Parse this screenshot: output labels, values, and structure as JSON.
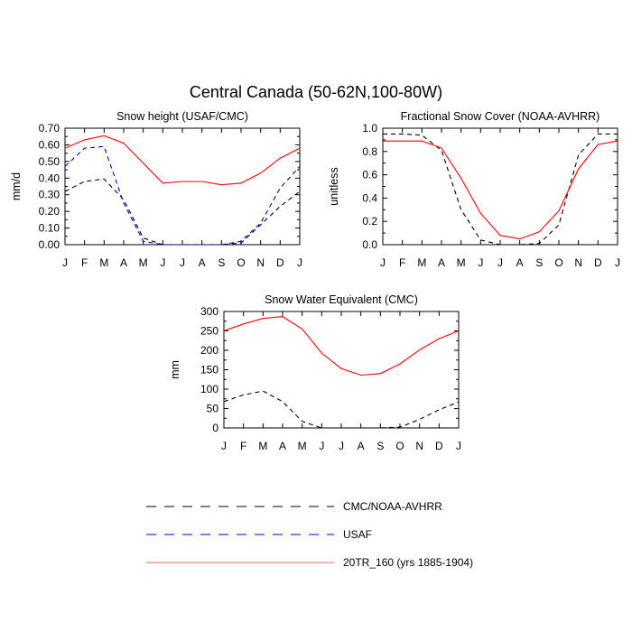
{
  "title": "Central Canada (50-62N,100-80W)",
  "months": [
    "J",
    "F",
    "M",
    "A",
    "M",
    "J",
    "J",
    "A",
    "S",
    "O",
    "N",
    "D",
    "J"
  ],
  "legend": [
    {
      "label": "CMC/NOAA-AVHRR",
      "color": "#000000",
      "dash": "dashed"
    },
    {
      "label": "USAF",
      "color": "#0000cc",
      "dash": "dashed"
    },
    {
      "label": "20TR_160 (yrs 1885-1904)",
      "color": "#ff0000",
      "dash": "solid"
    }
  ],
  "chart_data": [
    {
      "type": "line",
      "title": "Snow height (USAF/CMC)",
      "xlabel": "",
      "ylabel": "mm/d",
      "ylim": [
        0,
        0.7
      ],
      "yticks": [
        "0.00",
        "0.10",
        "0.20",
        "0.30",
        "0.40",
        "0.50",
        "0.60",
        "0.70"
      ],
      "categories": [
        "J",
        "F",
        "M",
        "A",
        "M",
        "J",
        "J",
        "A",
        "S",
        "O",
        "N",
        "D",
        "J"
      ],
      "series": [
        {
          "name": "CMC/NOAA-AVHRR",
          "color": "#000000",
          "dash": "dashed",
          "values": [
            0.32,
            0.38,
            0.395,
            0.27,
            0.04,
            0.0,
            0.0,
            0.0,
            0.0,
            0.01,
            0.12,
            0.23,
            0.32
          ]
        },
        {
          "name": "USAF",
          "color": "#0000cc",
          "dash": "dashed",
          "values": [
            0.47,
            0.58,
            0.59,
            0.25,
            0.02,
            0.0,
            0.0,
            0.0,
            0.0,
            0.02,
            0.13,
            0.34,
            0.47
          ]
        },
        {
          "name": "20TR_160 (yrs 1885-1904)",
          "color": "#ff0000",
          "dash": "solid",
          "values": [
            0.58,
            0.63,
            0.655,
            0.61,
            0.49,
            0.37,
            0.38,
            0.38,
            0.36,
            0.37,
            0.43,
            0.52,
            0.58
          ]
        }
      ]
    },
    {
      "type": "line",
      "title": "Fractional Snow Cover (NOAA-AVHRR)",
      "xlabel": "",
      "ylabel": "unitless",
      "ylim": [
        0,
        1.0
      ],
      "yticks": [
        "0.0",
        "0.2",
        "0.4",
        "0.6",
        "0.8",
        "1.0"
      ],
      "categories": [
        "J",
        "F",
        "M",
        "A",
        "M",
        "J",
        "J",
        "A",
        "S",
        "O",
        "N",
        "D",
        "J"
      ],
      "series": [
        {
          "name": "CMC/NOAA-AVHRR",
          "color": "#000000",
          "dash": "dashed",
          "values": [
            0.95,
            0.95,
            0.94,
            0.81,
            0.3,
            0.04,
            0.0,
            0.0,
            0.01,
            0.17,
            0.77,
            0.95,
            0.95
          ]
        },
        {
          "name": "20TR_160 (yrs 1885-1904)",
          "color": "#ff0000",
          "dash": "solid",
          "values": [
            0.89,
            0.89,
            0.89,
            0.83,
            0.57,
            0.27,
            0.08,
            0.05,
            0.11,
            0.29,
            0.65,
            0.86,
            0.89
          ]
        }
      ]
    },
    {
      "type": "line",
      "title": "Snow Water Equivalent (CMC)",
      "xlabel": "",
      "ylabel": "mm",
      "ylim": [
        0,
        300
      ],
      "yticks": [
        "0",
        "50",
        "100",
        "150",
        "200",
        "250",
        "300"
      ],
      "categories": [
        "J",
        "F",
        "M",
        "A",
        "M",
        "J",
        "J",
        "A",
        "S",
        "O",
        "N",
        "D",
        "J"
      ],
      "series": [
        {
          "name": "CMC/NOAA-AVHRR",
          "color": "#000000",
          "dash": "dashed",
          "values": [
            68,
            85,
            95,
            68,
            17,
            0,
            0,
            0,
            0,
            2,
            22,
            47,
            67
          ]
        },
        {
          "name": "20TR_160 (yrs 1885-1904)",
          "color": "#ff0000",
          "dash": "solid",
          "values": [
            250,
            268,
            282,
            287,
            255,
            193,
            153,
            136,
            140,
            165,
            201,
            230,
            250
          ]
        }
      ]
    }
  ]
}
